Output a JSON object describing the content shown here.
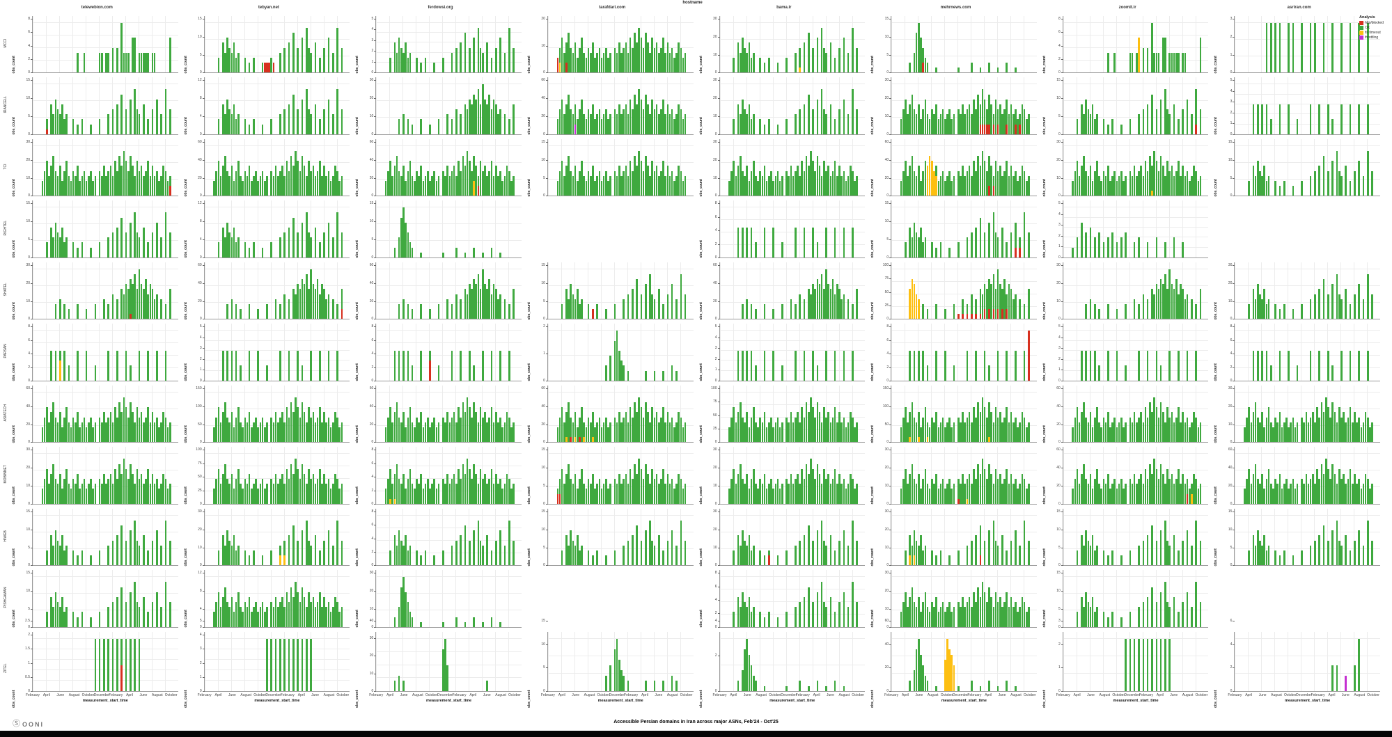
{
  "page": {
    "super_title": "hostname",
    "caption": "Accessible Persian domains in Iran across major ASNs, Feb'24 - Oct'25",
    "logo": {
      "icon": "circled-asterisk",
      "text": "OONI"
    }
  },
  "legend": {
    "title": "Analysis",
    "items": [
      {
        "label": "http/blocked",
        "color": "#d7301f"
      },
      {
        "label": "OK",
        "color": "#3fa93f"
      },
      {
        "label": "tls timeout",
        "color": "#fdbf11"
      },
      {
        "label": "throttling",
        "color": "#c42fd1"
      }
    ]
  },
  "chart_data": {
    "type": "bar",
    "layout": "facet-grid small multiples, 11 ASN rows x 8 hostname columns, grid on, legend top-right",
    "xlabel": "measurement_start_time",
    "ylabel": "obs_count",
    "x_range": [
      "Feb 2024",
      "Oct 2025"
    ],
    "x_ticks": [
      "February",
      "April",
      "June",
      "August",
      "October",
      "December",
      "February",
      "April",
      "June",
      "August",
      "October"
    ],
    "columns": [
      "telewebion.com",
      "tebyan.net",
      "ferdowsi.org",
      "tarafdari.com",
      "bama.ir",
      "mehrnews.com",
      "zoomit.ir",
      "asriran.com"
    ],
    "rows": [
      "MCCI",
      "IRANCELL",
      "TCI",
      "RIGHTEL",
      "SHATEL",
      "PARSAN",
      "ASIATECH",
      "MOBINNET",
      "HIWEB",
      "PISHGAMAN",
      "ZITEL"
    ],
    "colors": {
      "g": "#3fa93f",
      "r": "#d7301f",
      "o": "#fdbf11",
      "p": "#c42fd1"
    },
    "slots": 66,
    "patterns": {
      "A": "20:4 23:4 30:4 31:4 33:4 34:4 36:5 38:5 40:10 41:4 42:4 43:4 45:7 46:7 48:4 49:4 50:4 51:4 52:4 54:4 55:4 62:7",
      "B": "6:3 8:6 9:4 10:7 11:5 12:4 13:6 14:3 15:4 18:3 20:2 22:3 26:2 30:3 34:4 36:5 38:6 40:8 42:5 44:7 46:9 47:5 48:4 50:6 52:3 54:5 56:7 58:4 60:9 62:5",
      "C": "4:3 5:5 6:7 7:4 8:6 9:8 10:5 11:4 12:6 13:3 14:5 15:7 16:4 17:3 18:5 19:4 20:6 21:3 22:4 23:5 24:3 25:4 26:5 27:3 28:4 30:5 31:4 32:6 33:4 34:5 35:6 36:4 37:7 38:5 39:8 40:6 41:9 42:7 43:5 44:8 45:6 46:4 47:7 48:5 49:6 50:4 51:5 52:7 53:4 54:6 55:4 56:5 57:3 58:4 59:6 60:5 61:3 62:4",
      "D": "8:6 10:6 12:6 14:6 16:3 20:6 24:6 28:3 34:6 38:6 42:6 44:3 48:6 52:6 56:6 60:6",
      "E": "26:3 28:5 30:8 31:10 32:6 33:4 34:3 36:2 44:2 48:2 52:2 56:3 58:2",
      "F": "8:2 10:4 11:8 12:10 13:7 14:5 15:3 16:2 20:1 30:1 36:2 40:1 44:2 48:1 52:2 56:1",
      "G": "10:3 12:4 14:3 16:2 20:3 24:2 28:3 32:4 34:3 36:5 38:4 40:6 41:5 42:7 43:6 44:8 45:7 46:9 47:6 48:10 49:7 50:6 51:8 52:5 53:7 54:6 55:4 56:5 58:4 60:3 62:6",
      "H": "14:10 16:10 18:10 20:10 24:10 26:10 30:10 34:10 36:10 40:10 44:10 48:10 52:10 56:10 60:10",
      "H2": "28:10 30:10 32:10 34:10 36:10 38:10 40:10 42:10 44:10 46:10 48:10",
      "M": "8:2 10:3 12:2 30:8 31:10 32:5 50:2",
      "L": "44:5 46:5 54:5 56:10",
      "I": ""
    },
    "cells": [
      [
        {
          "p": "A",
          "yt": [
            0,
            2,
            4,
            6,
            8
          ]
        },
        {
          "p": "B",
          "yt": [
            0,
            5,
            10,
            15
          ],
          "x": "27:2:r 28:2:r 29:2:r 31:2:r"
        },
        {
          "p": "B",
          "yt": [
            0,
            1,
            2,
            3,
            4,
            5
          ]
        },
        {
          "p": "C",
          "yt": [
            0,
            10,
            20
          ],
          "x": "4:3:r 5:2:o 8:2:r"
        },
        {
          "p": "B",
          "yt": [
            0,
            10,
            20,
            30
          ],
          "x": "36:1:o"
        },
        {
          "p": "F",
          "yt": [
            0,
            5,
            10,
            15
          ],
          "x": "14:2:r"
        },
        {
          "p": "A",
          "yt": [
            0,
            2,
            4,
            6,
            8
          ],
          "x": "34:7:o"
        },
        {
          "p": "H",
          "yt": [
            0,
            1,
            2,
            3
          ]
        }
      ],
      [
        {
          "p": "B",
          "yt": [
            0,
            5,
            10,
            15
          ],
          "x": "6:1:r"
        },
        {
          "p": "B",
          "yt": [
            0,
            4,
            8,
            12
          ]
        },
        {
          "p": "G",
          "yt": [
            0,
            10,
            20,
            30
          ]
        },
        {
          "p": "C",
          "yt": [
            0,
            20,
            40,
            60
          ],
          "x": "12:2:p"
        },
        {
          "p": "B",
          "yt": [
            0,
            10,
            20,
            30
          ]
        },
        {
          "p": "C",
          "yt": [
            0,
            10,
            20,
            30
          ],
          "x": "40:2:r 41:2:r 42:2:r 43:2:r 44:2:r 46:2:r 48:2:r 52:2:r 56:2:r 58:2:r"
        },
        {
          "p": "B",
          "yt": [
            0,
            5,
            10,
            15
          ],
          "x": "60:2:r"
        },
        {
          "p": "D",
          "yt": [
            0,
            1,
            2,
            3,
            4,
            5
          ]
        }
      ],
      [
        {
          "p": "C",
          "yt": [
            0,
            10,
            20,
            30
          ],
          "x": "62:2:r"
        },
        {
          "p": "C",
          "yt": [
            0,
            20,
            40,
            60
          ]
        },
        {
          "p": "C",
          "yt": [
            0,
            20,
            40,
            60
          ],
          "x": "44:3:o 46:2:r"
        },
        {
          "p": "C",
          "yt": [
            0,
            5,
            10,
            15
          ]
        },
        {
          "p": "C",
          "yt": [
            0,
            10,
            20,
            30
          ]
        },
        {
          "p": "C",
          "yt": [
            0,
            20,
            40,
            60
          ],
          "x": "16:6:o 17:8:o 18:7:o 19:5:o 20:4:o 44:2:r 46:2:r"
        },
        {
          "p": "C",
          "yt": [
            0,
            10,
            20,
            30
          ],
          "x": "40:1:o"
        },
        {
          "p": "B",
          "yt": [
            0,
            5,
            10,
            15
          ]
        }
      ],
      [
        {
          "p": "B",
          "yt": [
            0,
            5,
            10,
            15
          ]
        },
        {
          "p": "B",
          "yt": [
            0,
            4,
            8,
            12
          ]
        },
        {
          "p": "F",
          "yt": [
            0,
            5,
            10,
            15
          ]
        },
        {
          "p": "I",
          "yt": []
        },
        {
          "p": "D",
          "yt": [
            0,
            2,
            4,
            6,
            8
          ]
        },
        {
          "p": "B",
          "yt": [
            0,
            5,
            10,
            15
          ],
          "x": "56:2:r 58:2:r"
        },
        {
          "p": "K",
          "yt": [
            0,
            1,
            2,
            3,
            4,
            5
          ]
        },
        {
          "p": "I",
          "yt": []
        }
      ],
      [
        {
          "p": "G",
          "yt": [
            0,
            10,
            20,
            30
          ],
          "x": "44:1:r"
        },
        {
          "p": "G",
          "yt": [
            0,
            20,
            40,
            60
          ],
          "x": "62:2:r"
        },
        {
          "p": "G",
          "yt": [
            0,
            20,
            40,
            60
          ]
        },
        {
          "p": "B",
          "yt": [
            0,
            5,
            10,
            15
          ],
          "x": "20:2:r"
        },
        {
          "p": "G",
          "yt": [
            0,
            20,
            40,
            60
          ]
        },
        {
          "p": "G",
          "yt": [
            0,
            25,
            50,
            75,
            100
          ],
          "x": "8:6:o 9:8:o 10:7:o 11:5:o 12:4:o 30:1:r 32:1:r 34:1:r 36:1:r 38:1:r 40:1:r 42:2:r 44:2:r 46:2:r 48:2:r 50:2:r 52:2:r"
        },
        {
          "p": "G",
          "yt": [
            0,
            10,
            20,
            30
          ]
        },
        {
          "p": "B",
          "yt": [
            0,
            10,
            20,
            30
          ]
        }
      ],
      [
        {
          "p": "D",
          "yt": [
            0,
            2,
            4,
            6,
            8
          ],
          "x": "12:4:o"
        },
        {
          "p": "D",
          "yt": [
            0,
            1,
            2,
            3,
            4,
            5
          ]
        },
        {
          "p": "D",
          "yt": [
            0,
            2,
            4,
            6,
            8
          ],
          "x": "24:4:r"
        },
        {
          "p": "E",
          "yt": [
            0,
            1,
            2
          ]
        },
        {
          "p": "D",
          "yt": [
            0,
            1,
            2,
            3,
            4,
            5
          ]
        },
        {
          "p": "D",
          "yt": [
            0,
            2,
            4,
            6,
            8
          ],
          "x": "62:10:r"
        },
        {
          "p": "D",
          "yt": [
            0,
            1,
            2,
            3,
            4,
            5
          ]
        },
        {
          "p": "D",
          "yt": [
            0,
            2,
            4,
            6,
            8
          ]
        }
      ],
      [
        {
          "p": "C",
          "yt": [
            0,
            20,
            40,
            60
          ]
        },
        {
          "p": "C",
          "yt": [
            0,
            50,
            100,
            150
          ]
        },
        {
          "p": "C",
          "yt": [
            0,
            20,
            40,
            60
          ]
        },
        {
          "p": "C",
          "yt": [
            0,
            20,
            40,
            60
          ],
          "x": "8:1:o 10:1:r 12:1:o 14:1:r 16:1:o 20:1:o"
        },
        {
          "p": "C",
          "yt": [
            0,
            25,
            50,
            75,
            100
          ]
        },
        {
          "p": "C",
          "yt": [
            0,
            50,
            100,
            150
          ],
          "x": "8:1:o 12:1:o 16:1:o 44:1:o"
        },
        {
          "p": "C",
          "yt": [
            0,
            20,
            40,
            60
          ]
        },
        {
          "p": "C",
          "yt": [
            0,
            10,
            20,
            30
          ]
        }
      ],
      [
        {
          "p": "C",
          "yt": [
            0,
            10,
            20,
            30
          ]
        },
        {
          "p": "C",
          "yt": [
            0,
            25,
            50,
            75,
            100
          ]
        },
        {
          "p": "C",
          "yt": [
            0,
            2,
            4,
            6,
            8
          ],
          "x": "6:1:o 8:1:o"
        },
        {
          "p": "C",
          "yt": [
            0,
            5,
            10,
            15
          ],
          "x": "4:2:r 5:2:r"
        },
        {
          "p": "C",
          "yt": [
            0,
            10,
            20,
            30
          ]
        },
        {
          "p": "C",
          "yt": [
            0,
            10,
            20,
            30
          ],
          "x": "30:1:r 34:1:o"
        },
        {
          "p": "C",
          "yt": [
            0,
            20,
            40,
            60
          ],
          "x": "56:2:r 58:2:o"
        },
        {
          "p": "C",
          "yt": [
            0,
            20,
            40,
            60
          ]
        }
      ],
      [
        {
          "p": "B",
          "yt": [
            0,
            5,
            10,
            15
          ]
        },
        {
          "p": "B",
          "yt": [
            0,
            10,
            20,
            30
          ],
          "x": "34:2:o 36:2:o"
        },
        {
          "p": "B",
          "yt": [
            0,
            2,
            4,
            6,
            8
          ]
        },
        {
          "p": "B",
          "yt": [
            0,
            5,
            10,
            15
          ]
        },
        {
          "p": "B",
          "yt": [
            0,
            10,
            20,
            30
          ],
          "x": "22:2:r"
        },
        {
          "p": "B",
          "yt": [
            0,
            10,
            20,
            30
          ],
          "x": "8:2:o 10:2:o 40:2:r"
        },
        {
          "p": "B",
          "yt": [
            0,
            5,
            10,
            15
          ]
        },
        {
          "p": "B",
          "yt": [
            0,
            5,
            10,
            15
          ]
        }
      ],
      [
        {
          "p": "B",
          "yt": [
            0,
            5,
            10,
            15
          ]
        },
        {
          "p": "C",
          "yt": [
            0,
            4,
            8,
            12
          ]
        },
        {
          "p": "F",
          "yt": [
            0,
            10,
            20,
            30
          ]
        },
        {
          "p": "I",
          "yt": []
        },
        {
          "p": "B",
          "yt": [
            0,
            2,
            4,
            6,
            8
          ]
        },
        {
          "p": "C",
          "yt": [
            0,
            10,
            20,
            30
          ]
        },
        {
          "p": "B",
          "yt": [
            0,
            5,
            10,
            15
          ]
        },
        {
          "p": "I",
          "yt": []
        }
      ],
      [
        {
          "p": "H2",
          "yt": [
            0,
            0.5,
            1,
            1.5,
            2,
            2.5
          ],
          "x": "40:5:r"
        },
        {
          "p": "H2",
          "yt": [
            0,
            1,
            2,
            3,
            4,
            5
          ]
        },
        {
          "p": "M",
          "yt": [
            0,
            10,
            20,
            30,
            40
          ]
        },
        {
          "p": "E",
          "yt": [
            0,
            5,
            10,
            15
          ]
        },
        {
          "p": "F",
          "yt": [
            0,
            2,
            4
          ]
        },
        {
          "p": "F",
          "yt": [
            0,
            20,
            40,
            60
          ],
          "x": "24:6:o 25:10:o 26:8:o 27:7:o 28:5:o"
        },
        {
          "p": "H2",
          "yt": [
            0,
            1,
            2,
            3
          ]
        },
        {
          "p": "L",
          "yt": [
            0,
            2,
            4,
            6
          ],
          "x": "50:3:p"
        }
      ]
    ],
    "patterns_extra": {
      "K": "4:2 6:4 8:7 10:5 12:6 14:4 16:5 18:3 20:4 22:5 24:3 26:4 28:5 32:3 34:4 38:3 42:4 46:3 50:4 54:3"
    }
  }
}
